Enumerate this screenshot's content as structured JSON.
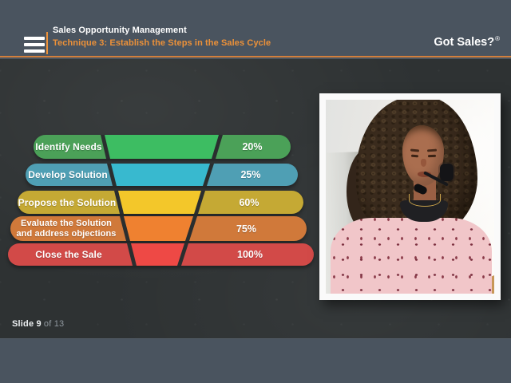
{
  "header": {
    "title": "Sales Opportunity Management",
    "subtitle": "Technique 3: Establish the Steps in the Sales Cycle",
    "logo": "Got Sales?",
    "logo_mark": "®",
    "accent_color": "#ec9139",
    "bar_color": "#4a545f",
    "menu_icon": "hamburger-menu-icon"
  },
  "funnel": {
    "rows": [
      {
        "label": "Identify Needs",
        "percent": "20%",
        "outer_color": "#4ba158",
        "inner_color": "#3dbd62"
      },
      {
        "label": "Develop Solution",
        "percent": "25%",
        "outer_color": "#4f9fb4",
        "inner_color": "#38b9cf"
      },
      {
        "label": "Propose the Solution",
        "percent": "60%",
        "outer_color": "#c5a934",
        "inner_color": "#f3c72a"
      },
      {
        "label_line1": "Evaluate the Solution",
        "label_line2": "and address objections",
        "percent": "75%",
        "outer_color": "#d0793a",
        "inner_color": "#ef8130"
      },
      {
        "label": "Close the Sale",
        "percent": "100%",
        "outer_color": "#d24a48",
        "inner_color": "#ee4945"
      }
    ],
    "divider_color": "#2a2e2f"
  },
  "chart_data": {
    "type": "bar",
    "subtype": "funnel",
    "categories": [
      "Identify Needs",
      "Develop Solution",
      "Propose the Solution",
      "Evaluate the Solution and address objections",
      "Close the Sale"
    ],
    "values": [
      20,
      25,
      60,
      75,
      100
    ],
    "value_labels": [
      "20%",
      "25%",
      "60%",
      "75%",
      "100%"
    ],
    "title": "",
    "legend": "none"
  },
  "footer": {
    "slide_current": "Slide 9",
    "slide_total": "of 13"
  }
}
